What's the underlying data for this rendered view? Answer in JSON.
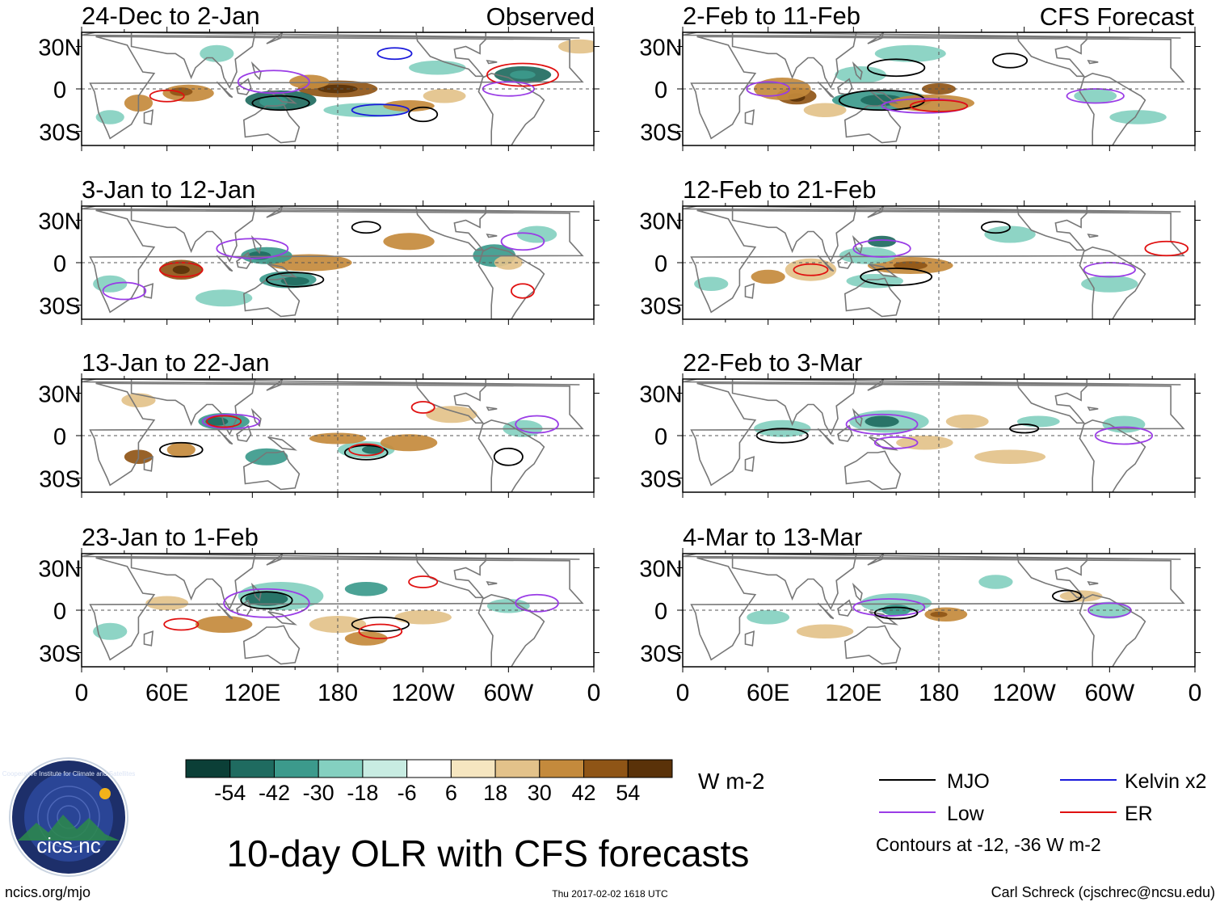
{
  "figure": {
    "title": "10-day OLR with CFS forecasts",
    "left_column_label": "Observed",
    "right_column_label": "CFS Forecast",
    "timestamp": "Thu 2017-02-02 1618 UTC",
    "website": "ncics.org/mjo",
    "author": "Carl Schreck (cjschrec@ncsu.edu)",
    "logo": {
      "text": "cics.nc",
      "ring_text": "Cooperative Institute for Climate and Satellites"
    }
  },
  "panels": {
    "observed": [
      {
        "period": "24-Dec to 2-Jan"
      },
      {
        "period": "3-Jan to 12-Jan"
      },
      {
        "period": "13-Jan to 22-Jan"
      },
      {
        "period": "23-Jan to 1-Feb"
      }
    ],
    "forecast": [
      {
        "period": "2-Feb to 11-Feb"
      },
      {
        "period": "12-Feb to 21-Feb"
      },
      {
        "period": "22-Feb to 3-Mar"
      },
      {
        "period": "4-Mar to 13-Mar"
      }
    ]
  },
  "axes": {
    "lat_labels": [
      "30N",
      "0",
      "30S"
    ],
    "lon_labels": [
      "0",
      "60E",
      "120E",
      "180",
      "120W",
      "60W",
      "0"
    ]
  },
  "colorbar": {
    "units": "W m-2",
    "tick_labels": [
      "-54",
      "-42",
      "-30",
      "-18",
      "-6",
      "6",
      "18",
      "30",
      "42",
      "54"
    ],
    "colors": [
      "#0b3f37",
      "#1f6b60",
      "#3c9a8c",
      "#84d0c0",
      "#c8ece2",
      "#ffffff",
      "#f6e6c0",
      "#e3c28a",
      "#c48a3c",
      "#8f5516",
      "#5a3209"
    ]
  },
  "legend": {
    "items": [
      {
        "label": "MJO",
        "color": "#000000"
      },
      {
        "label": "Kelvin x2",
        "color": "#1a1adb"
      },
      {
        "label": "Low",
        "color": "#9a3ce6"
      },
      {
        "label": "ER",
        "color": "#e01010"
      }
    ],
    "note": "Contours at -12, -36 W m-2"
  }
}
